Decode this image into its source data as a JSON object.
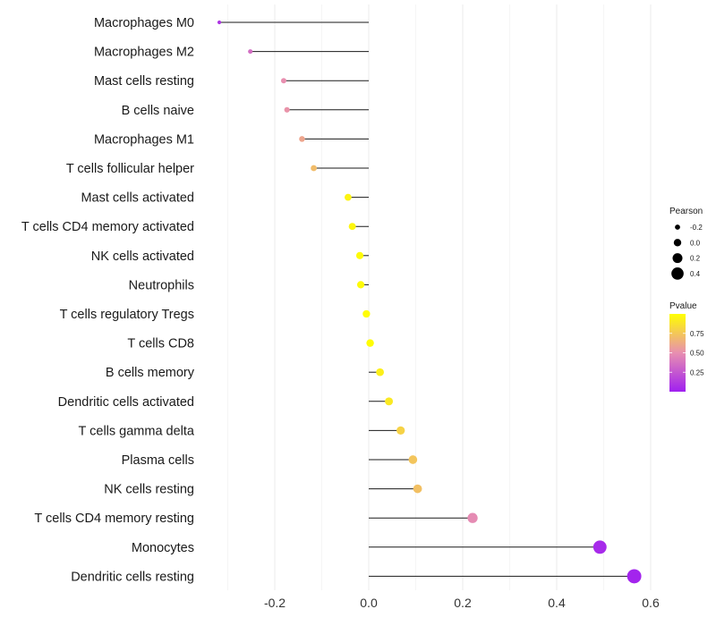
{
  "chart_data": {
    "type": "lollipop",
    "title": "",
    "xlabel": "",
    "ylabel": "",
    "xlim": [
      -0.32,
      0.61
    ],
    "xticks": [
      -0.2,
      0.0,
      0.2,
      0.4,
      0.6
    ],
    "xtick_labels": [
      "-0.2",
      "0.0",
      "0.2",
      "0.4",
      "0.6"
    ],
    "grid": true,
    "categories": [
      "Macrophages M0",
      "Macrophages M2",
      "Mast cells resting",
      "B cells naive",
      "Macrophages M1",
      "T cells follicular helper",
      "Mast cells activated",
      "T cells CD4 memory activated",
      "NK cells activated",
      "Neutrophils",
      "T cells regulatory  Tregs ",
      "T cells CD8",
      "B cells memory",
      "Dendritic cells activated",
      "T cells gamma delta",
      "Plasma cells",
      "NK cells resting",
      "T cells CD4 memory resting",
      "Monocytes",
      "Dendritic cells resting"
    ],
    "pearson": [
      -0.318,
      -0.252,
      -0.181,
      -0.174,
      -0.142,
      -0.117,
      -0.044,
      -0.035,
      -0.019,
      -0.017,
      -0.005,
      0.003,
      0.024,
      0.043,
      0.068,
      0.094,
      0.104,
      0.221,
      0.492,
      0.565
    ],
    "pvalue": [
      0.1,
      0.35,
      0.5,
      0.52,
      0.6,
      0.7,
      0.95,
      0.96,
      0.98,
      0.98,
      0.99,
      0.99,
      0.93,
      0.9,
      0.8,
      0.74,
      0.72,
      0.48,
      0.05,
      0.02
    ],
    "legend": {
      "size": {
        "title": "Pearson",
        "labels": [
          "-0.2",
          "0.0",
          "0.2",
          "0.4"
        ],
        "values": [
          -0.2,
          0.0,
          0.2,
          0.4
        ]
      },
      "color": {
        "title": "Pvalue",
        "labels": [
          "0.75",
          "0.50",
          "0.25"
        ],
        "values": [
          0.75,
          0.5,
          0.25
        ],
        "range": [
          0.0,
          1.0
        ],
        "low_color": "#a020f0",
        "mid_color": "#e88fb0",
        "high_color": "#ffff00"
      },
      "position": "right"
    }
  }
}
